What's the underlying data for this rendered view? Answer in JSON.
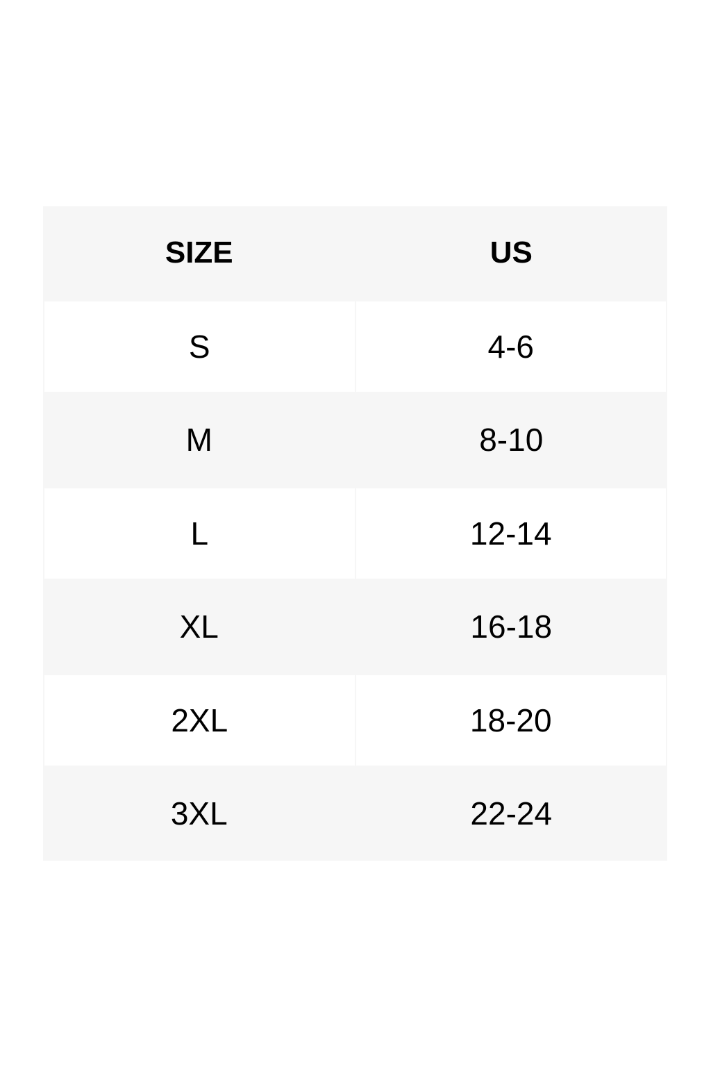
{
  "table": {
    "headers": [
      "SIZE",
      "US"
    ],
    "rows": [
      [
        "S",
        "4-6"
      ],
      [
        "M",
        "8-10"
      ],
      [
        "L",
        "12-14"
      ],
      [
        "XL",
        "16-18"
      ],
      [
        "2XL",
        "18-20"
      ],
      [
        "3XL",
        "22-24"
      ]
    ]
  },
  "colors": {
    "stripe": "#f6f6f6",
    "white": "#ffffff",
    "text": "#000000"
  }
}
